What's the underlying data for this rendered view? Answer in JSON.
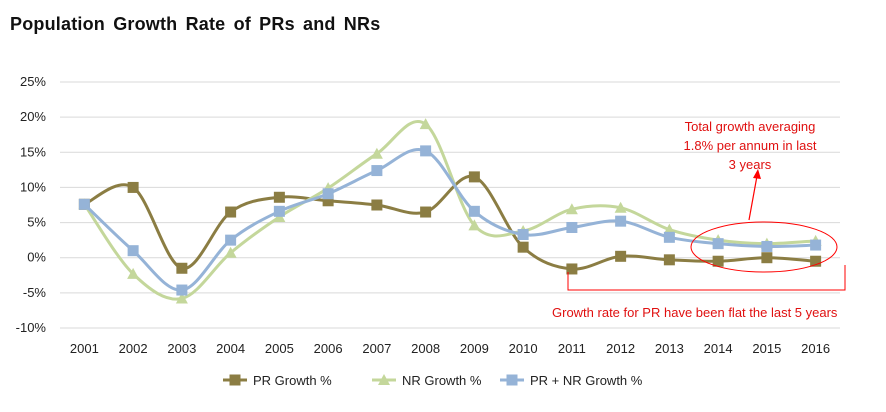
{
  "chart_data": {
    "type": "line",
    "title": "Population  Growth Rate of PRs and NRs",
    "x": [
      "2001",
      "2002",
      "2003",
      "2004",
      "2005",
      "2006",
      "2007",
      "2008",
      "2009",
      "2010",
      "2011",
      "2012",
      "2013",
      "2014",
      "2015",
      "2016"
    ],
    "ylim": [
      -10,
      25
    ],
    "yticks": [
      -10,
      -5,
      0,
      5,
      10,
      15,
      20,
      25
    ],
    "ytick_labels": [
      "-10%",
      "-5%",
      "0%",
      "5%",
      "10%",
      "15%",
      "20%",
      "25%"
    ],
    "grid": "horizontal",
    "legend_position": "bottom",
    "series": [
      {
        "name": "PR Growth %",
        "color": "#8b7d43",
        "marker": "square",
        "values": [
          7.6,
          10.0,
          -1.5,
          6.5,
          8.6,
          8.1,
          7.5,
          6.5,
          11.5,
          1.5,
          -1.6,
          0.2,
          -0.3,
          -0.5,
          0.0,
          -0.5
        ]
      },
      {
        "name": "NR Growth %",
        "color": "#c4d79b",
        "marker": "triangle",
        "values": [
          7.6,
          -2.3,
          -5.8,
          0.7,
          5.8,
          9.9,
          14.8,
          19.0,
          4.6,
          3.8,
          6.9,
          7.1,
          4.0,
          2.5,
          2.0,
          2.4
        ]
      },
      {
        "name": "PR + NR Growth %",
        "color": "#95b3d7",
        "marker": "square",
        "values": [
          7.6,
          1.0,
          -4.6,
          2.5,
          6.6,
          9.1,
          12.4,
          15.2,
          6.6,
          3.3,
          4.3,
          5.2,
          2.9,
          2.0,
          1.6,
          1.8
        ]
      }
    ],
    "annotations": [
      {
        "text_lines": [
          "Total growth averaging",
          "1.8% per annum in last",
          "3 years"
        ],
        "color": "#ff0000"
      },
      {
        "text": "Growth  rate for PR have been flat the last 5 years",
        "color": "#ff0000"
      }
    ]
  }
}
